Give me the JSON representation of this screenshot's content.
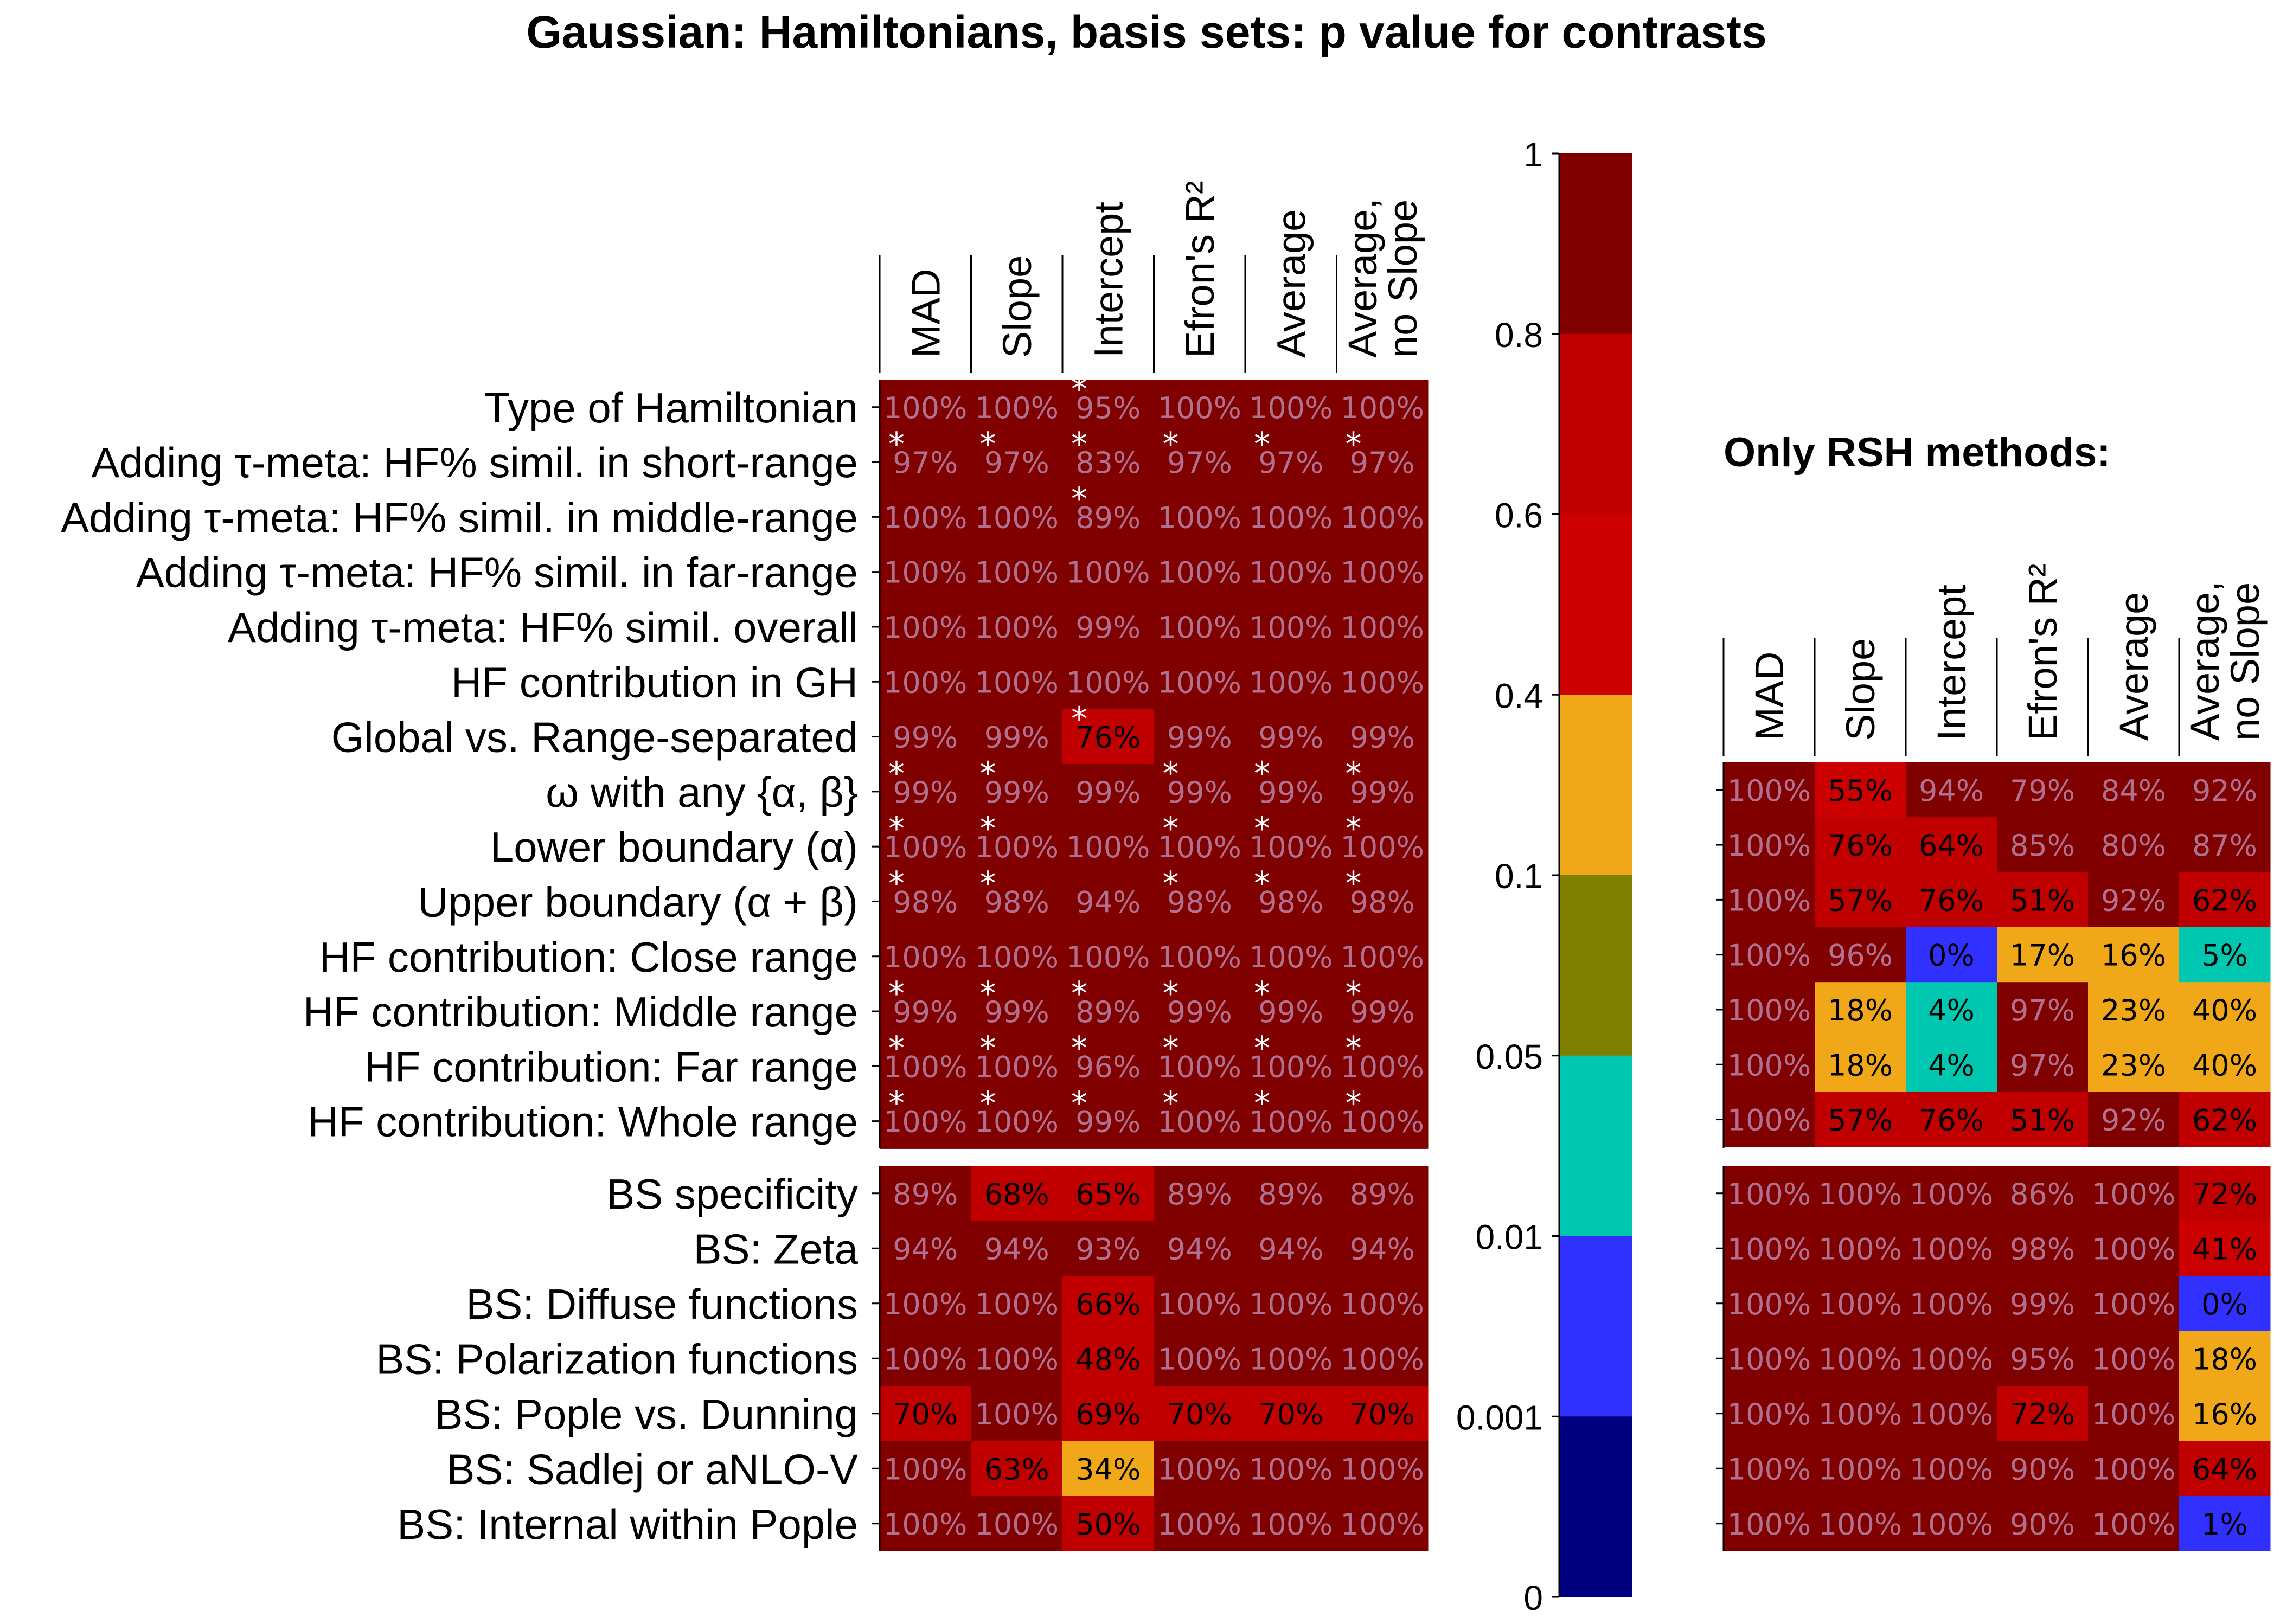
{
  "chart_data": {
    "type": "heatmap",
    "title": "Gaussian: Hamiltonians, basis sets: p value for contrasts",
    "columns": [
      "MAD",
      "Slope",
      "Intercept",
      "Efron's R²",
      "Average",
      "Average,\nno Slope"
    ],
    "rows": [
      "Type of Hamiltonian",
      "Adding τ-meta: HF% simil. in short-range",
      "Adding τ-meta: HF% simil. in middle-range",
      "Adding τ-meta: HF% simil. in far-range",
      "Adding τ-meta: HF% simil. overall",
      "HF contribution in GH",
      "Global vs. Range-separated",
      "ω with any {α, β}",
      "Lower boundary (α)",
      "Upper boundary (α + β)",
      "HF contribution: Close range",
      "HF contribution: Middle range",
      "HF contribution: Far range",
      "HF contribution: Whole range",
      "BS specificity",
      "BS: Zeta",
      "BS: Diffuse functions",
      "BS: Polarization functions",
      "BS: Pople vs. Dunning",
      "BS: Sadlej or aNLO-V",
      "BS: Internal within Pople"
    ],
    "main_values": [
      [
        100,
        100,
        95,
        100,
        100,
        100
      ],
      [
        97,
        97,
        83,
        97,
        97,
        97
      ],
      [
        100,
        100,
        89,
        100,
        100,
        100
      ],
      [
        100,
        100,
        100,
        100,
        100,
        100
      ],
      [
        100,
        100,
        99,
        100,
        100,
        100
      ],
      [
        100,
        100,
        100,
        100,
        100,
        100
      ],
      [
        99,
        99,
        76,
        99,
        99,
        99
      ],
      [
        99,
        99,
        99,
        99,
        99,
        99
      ],
      [
        100,
        100,
        100,
        100,
        100,
        100
      ],
      [
        98,
        98,
        94,
        98,
        98,
        98
      ],
      [
        100,
        100,
        100,
        100,
        100,
        100
      ],
      [
        99,
        99,
        89,
        99,
        99,
        99
      ],
      [
        100,
        100,
        96,
        100,
        100,
        100
      ],
      [
        100,
        100,
        99,
        100,
        100,
        100
      ],
      [
        89,
        68,
        65,
        89,
        89,
        89
      ],
      [
        94,
        94,
        93,
        94,
        94,
        94
      ],
      [
        100,
        100,
        66,
        100,
        100,
        100
      ],
      [
        100,
        100,
        48,
        100,
        100,
        100
      ],
      [
        70,
        100,
        69,
        70,
        70,
        70
      ],
      [
        100,
        63,
        34,
        100,
        100,
        100
      ],
      [
        100,
        100,
        50,
        100,
        100,
        100
      ]
    ],
    "main_stars": [
      [
        0,
        0,
        1,
        0,
        0,
        0
      ],
      [
        1,
        1,
        1,
        1,
        1,
        1
      ],
      [
        0,
        0,
        1,
        0,
        0,
        0
      ],
      [
        0,
        0,
        0,
        0,
        0,
        0
      ],
      [
        0,
        0,
        0,
        0,
        0,
        0
      ],
      [
        0,
        0,
        0,
        0,
        0,
        0
      ],
      [
        0,
        0,
        1,
        0,
        0,
        0
      ],
      [
        1,
        1,
        0,
        1,
        1,
        1
      ],
      [
        1,
        1,
        0,
        1,
        1,
        1
      ],
      [
        1,
        1,
        0,
        1,
        1,
        1
      ],
      [
        0,
        0,
        0,
        0,
        0,
        0
      ],
      [
        1,
        1,
        1,
        1,
        1,
        1
      ],
      [
        1,
        1,
        1,
        1,
        1,
        1
      ],
      [
        1,
        1,
        1,
        1,
        1,
        1
      ],
      [
        0,
        0,
        0,
        0,
        0,
        0
      ],
      [
        0,
        0,
        0,
        0,
        0,
        0
      ],
      [
        0,
        0,
        0,
        0,
        0,
        0
      ],
      [
        0,
        0,
        0,
        0,
        0,
        0
      ],
      [
        0,
        0,
        0,
        0,
        0,
        0
      ],
      [
        0,
        0,
        0,
        0,
        0,
        0
      ],
      [
        0,
        0,
        0,
        0,
        0,
        0
      ]
    ],
    "rsh_title": "Only RSH methods:",
    "rsh_values": [
      [
        100,
        55,
        94,
        79,
        84,
        92
      ],
      [
        100,
        76,
        64,
        85,
        80,
        87
      ],
      [
        100,
        57,
        76,
        51,
        92,
        62
      ],
      [
        100,
        96,
        0,
        17,
        16,
        5
      ],
      [
        100,
        18,
        4,
        97,
        23,
        40
      ],
      [
        100,
        18,
        4,
        97,
        23,
        40
      ],
      [
        100,
        57,
        76,
        51,
        92,
        62
      ],
      [
        100,
        100,
        100,
        86,
        100,
        72
      ],
      [
        100,
        100,
        100,
        98,
        100,
        41
      ],
      [
        100,
        100,
        100,
        99,
        100,
        0
      ],
      [
        100,
        100,
        100,
        95,
        100,
        18
      ],
      [
        100,
        100,
        100,
        72,
        100,
        16
      ],
      [
        100,
        100,
        100,
        90,
        100,
        64
      ],
      [
        100,
        100,
        100,
        90,
        100,
        1
      ]
    ],
    "rsh_pvalues": [
      [
        1,
        0.6,
        0.9,
        0.85,
        0.9,
        0.9
      ],
      [
        1,
        0.7,
        0.7,
        0.9,
        0.9,
        0.9
      ],
      [
        1,
        0.7,
        0.7,
        0.7,
        0.9,
        0.7
      ],
      [
        1,
        0.9,
        0.005,
        0.2,
        0.2,
        0.03
      ],
      [
        1,
        0.2,
        0.03,
        0.9,
        0.2,
        0.2
      ],
      [
        1,
        0.2,
        0.03,
        0.9,
        0.2,
        0.2
      ],
      [
        1,
        0.7,
        0.7,
        0.7,
        0.9,
        0.7
      ],
      [
        1,
        1,
        1,
        0.9,
        1,
        0.7
      ],
      [
        1,
        1,
        1,
        0.9,
        1,
        0.5
      ],
      [
        1,
        1,
        1,
        0.9,
        1,
        0.005
      ],
      [
        1,
        1,
        1,
        0.9,
        1,
        0.2
      ],
      [
        1,
        1,
        1,
        0.7,
        1,
        0.2
      ],
      [
        1,
        1,
        1,
        0.9,
        1,
        0.7
      ],
      [
        1,
        1,
        1,
        0.9,
        1,
        0.005
      ]
    ],
    "main_pvalues": [
      [
        1,
        1,
        0.9,
        1,
        1,
        1
      ],
      [
        0.9,
        0.9,
        0.9,
        0.9,
        0.9,
        0.9
      ],
      [
        1,
        1,
        0.9,
        1,
        1,
        1
      ],
      [
        1,
        1,
        1,
        1,
        1,
        1
      ],
      [
        1,
        1,
        0.9,
        1,
        1,
        1
      ],
      [
        1,
        1,
        1,
        1,
        1,
        1
      ],
      [
        0.9,
        0.9,
        0.7,
        0.9,
        0.9,
        0.9
      ],
      [
        0.9,
        0.9,
        0.9,
        0.9,
        0.9,
        0.9
      ],
      [
        1,
        1,
        1,
        1,
        1,
        1
      ],
      [
        0.9,
        0.9,
        0.9,
        0.9,
        0.9,
        0.9
      ],
      [
        1,
        1,
        1,
        1,
        1,
        1
      ],
      [
        0.9,
        0.9,
        0.9,
        0.9,
        0.9,
        0.9
      ],
      [
        1,
        1,
        0.9,
        1,
        1,
        1
      ],
      [
        1,
        1,
        0.9,
        1,
        1,
        1
      ],
      [
        0.9,
        0.7,
        0.7,
        0.9,
        0.9,
        0.9
      ],
      [
        0.9,
        0.9,
        0.9,
        0.9,
        0.9,
        0.9
      ],
      [
        1,
        1,
        0.7,
        1,
        1,
        1
      ],
      [
        1,
        1,
        0.7,
        1,
        1,
        1
      ],
      [
        0.7,
        1,
        0.7,
        0.7,
        0.7,
        0.7
      ],
      [
        1,
        0.7,
        0.2,
        1,
        1,
        1
      ],
      [
        1,
        1,
        0.7,
        1,
        1,
        1
      ]
    ],
    "colorbar": {
      "ticks": [
        "1",
        "0.8",
        "0.6",
        "0.4",
        "0.1",
        "0.05",
        "0.01",
        "0.001",
        "0"
      ],
      "band_thresholds": [
        0.8,
        0.6,
        0.4,
        0.1,
        0.05,
        0.01,
        0.001,
        0
      ],
      "band_colors": [
        "#800000",
        "#c00000",
        "#cc0000",
        "#f0a818",
        "#808000",
        "#00c8b0",
        "#3030ff",
        "#00007f"
      ]
    },
    "text_colors": {
      "dark_cell": "#b07090",
      "light_cell": "#000000",
      "star": "#ffffff"
    }
  }
}
